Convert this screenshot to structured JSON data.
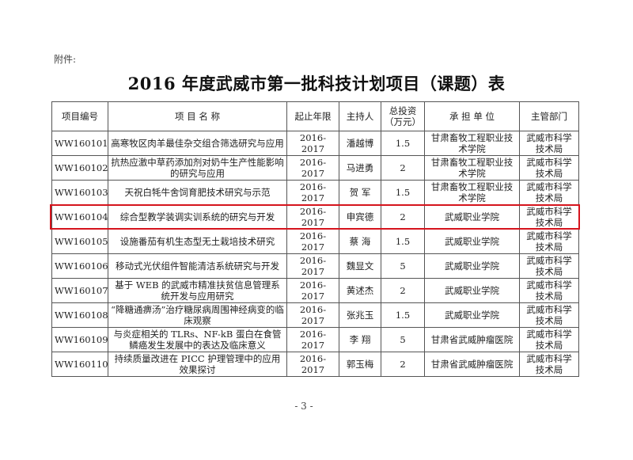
{
  "attachment_label": "附件:",
  "title": "2016 年度武威市第一批科技计划项目（课题）表",
  "table": {
    "headers": [
      "项目编号",
      "项 目 名 称",
      "起止年限",
      "主持人",
      "总投资（万元）",
      "承 担 单 位",
      "主管部门"
    ],
    "rows": [
      [
        "WW160101",
        "高寒牧区肉羊最佳杂交组合筛选研究与应用",
        "2016-2017",
        "潘越博",
        "1.5",
        "甘肃畜牧工程职业技术学院",
        "武威市科学技术局"
      ],
      [
        "WW160102",
        "抗热应激中草药添加剂对奶牛生产性能影响的研究与应用",
        "2016-2017",
        "马进勇",
        "2",
        "甘肃畜牧工程职业技术学院",
        "武威市科学技术局"
      ],
      [
        "WW160103",
        "天祝白牦牛舍饲育肥技术研究与示范",
        "2016-2017",
        "贺 军",
        "1.5",
        "甘肃畜牧工程职业技术学院",
        "武威市科学技术局"
      ],
      [
        "WW160104",
        "综合型教学装调实训系统的研究与开发",
        "2016-2017",
        "申宾德",
        "2",
        "武威职业学院",
        "武威市科学技术局"
      ],
      [
        "WW160105",
        "设施番茄有机生态型无土栽培技术研究",
        "2016-2017",
        "蔡 海",
        "1.5",
        "武威职业学院",
        "武威市科学技术局"
      ],
      [
        "WW160106",
        "移动式光伏组件智能清洁系统研究与开发",
        "2016-2017",
        "魏显文",
        "5",
        "武威职业学院",
        "武威市科学技术局"
      ],
      [
        "WW160107",
        "基于 WEB 的武威市精准扶贫信息管理系统开发与应用研究",
        "2016-2017",
        "黄述杰",
        "2",
        "武威职业学院",
        "武威市科学技术局"
      ],
      [
        "WW160108",
        "“降糖通痹汤”治疗糖尿病周围神经病变的临床观察",
        "2016-2017",
        "张兆玉",
        "1.5",
        "武威职业学院",
        "武威市科学技术局"
      ],
      [
        "WW160109",
        "与炎症相关的 TLRs、NF-kB 蛋白在食管鳞癌发生发展中的表达及临床意义",
        "2016-2017",
        "李 翔",
        "5",
        "甘肃省武威肿瘤医院",
        "武威市科学技术局"
      ],
      [
        "WW160110",
        "持续质量改进在 PICC 护理管理中的应用效果探讨",
        "2016-2017",
        "郭玉梅",
        "2",
        "甘肃省武威肿瘤医院",
        "武威市科学技术局"
      ]
    ],
    "highlighted_row": 3,
    "highlight_color": "#d5141d"
  },
  "page_number": "- 3 -"
}
